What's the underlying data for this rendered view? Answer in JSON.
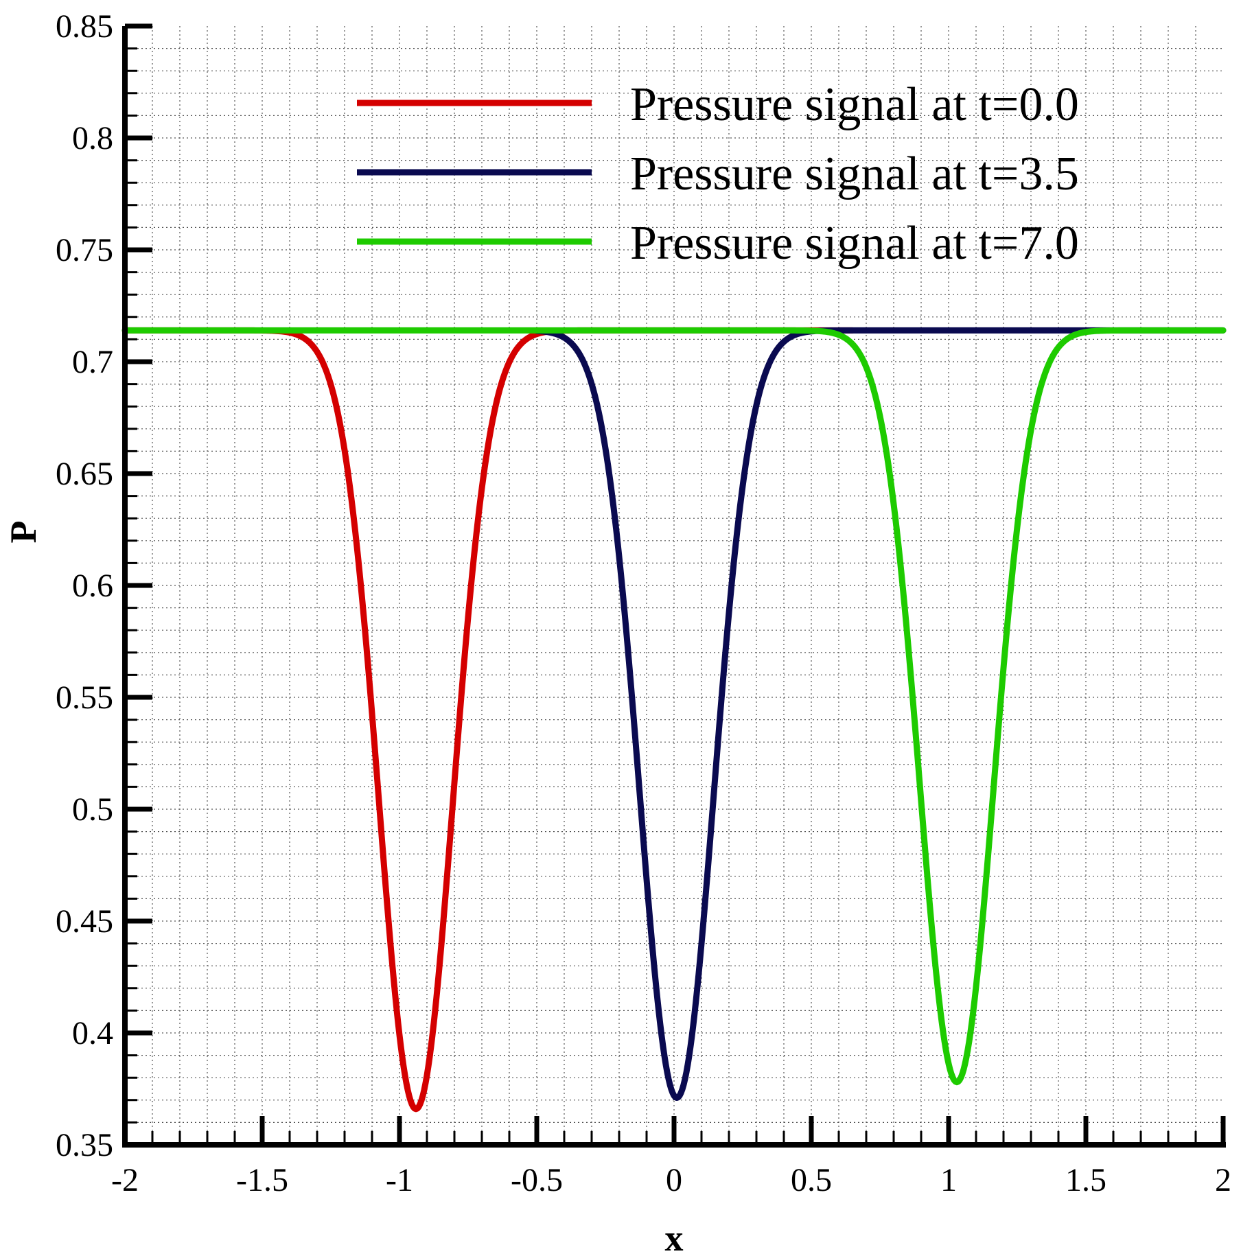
{
  "chart_data": {
    "type": "line",
    "xlabel": "x",
    "ylabel": "P",
    "xlim": [
      -2,
      2
    ],
    "ylim": [
      0.35,
      0.85
    ],
    "xticks": [
      -2,
      -1.5,
      -1,
      -0.5,
      0,
      0.5,
      1,
      1.5,
      2
    ],
    "xtick_labels": [
      "-2",
      "-1.5",
      "-1",
      "-0.5",
      "0",
      "0.5",
      "1",
      "1.5",
      "2"
    ],
    "yticks": [
      0.35,
      0.4,
      0.45,
      0.5,
      0.55,
      0.6,
      0.65,
      0.7,
      0.75,
      0.8,
      0.85
    ],
    "ytick_labels": [
      "0.35",
      "0.4",
      "0.45",
      "0.5",
      "0.55",
      "0.6",
      "0.65",
      "0.7",
      "0.75",
      "0.8",
      "0.85"
    ],
    "grid": true,
    "legend_position": "top-right",
    "baseline": 0.714,
    "series": [
      {
        "name": "Pressure signal at t=0.0",
        "color": "#d40000",
        "center": -0.94,
        "min": 0.366,
        "width": 0.19,
        "x_range": [
          -2,
          0.65
        ]
      },
      {
        "name": "Pressure signal at t=3.5",
        "color": "#0a0a50",
        "center": 0.01,
        "min": 0.371,
        "width": 0.19,
        "x_range": [
          -0.5,
          2
        ]
      },
      {
        "name": "Pressure signal at t=7.0",
        "color": "#1ecb00",
        "center": 1.03,
        "min": 0.378,
        "width": 0.19,
        "x_range": [
          -2,
          2
        ]
      }
    ]
  }
}
